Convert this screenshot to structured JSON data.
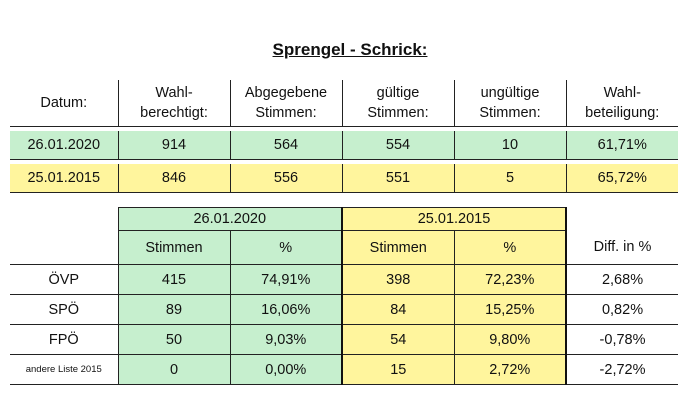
{
  "title": "Sprengel - Schrick:",
  "summary": {
    "headers": [
      [
        "Datum:",
        ""
      ],
      [
        "Wahl-",
        "berechtigt:"
      ],
      [
        "Abgegebene",
        "Stimmen:"
      ],
      [
        "gültige",
        "Stimmen:"
      ],
      [
        "ungültige",
        "Stimmen:"
      ],
      [
        "Wahl-",
        "beteiligung:"
      ]
    ],
    "rows": [
      [
        "26.01.2020",
        "914",
        "564",
        "554",
        "10",
        "61,71%"
      ],
      [
        "25.01.2015",
        "846",
        "556",
        "551",
        "5",
        "65,72%"
      ]
    ]
  },
  "results": {
    "period_2020": "26.01.2020",
    "period_2015": "25.01.2015",
    "sub_headers": [
      "Stimmen",
      "%",
      "Stimmen",
      "%",
      "Diff. in %"
    ],
    "rows": [
      [
        "ÖVP",
        "415",
        "74,91%",
        "398",
        "72,23%",
        "2,68%"
      ],
      [
        "SPÖ",
        "89",
        "16,06%",
        "84",
        "15,25%",
        "0,82%"
      ],
      [
        "FPÖ",
        "50",
        "9,03%",
        "54",
        "9,80%",
        "-0,78%"
      ],
      [
        "andere Liste 2015",
        "0",
        "0,00%",
        "15",
        "2,72%",
        "-2,72%"
      ]
    ]
  },
  "colors": {
    "green": "#c6efce",
    "yellow": "#fff59d"
  }
}
